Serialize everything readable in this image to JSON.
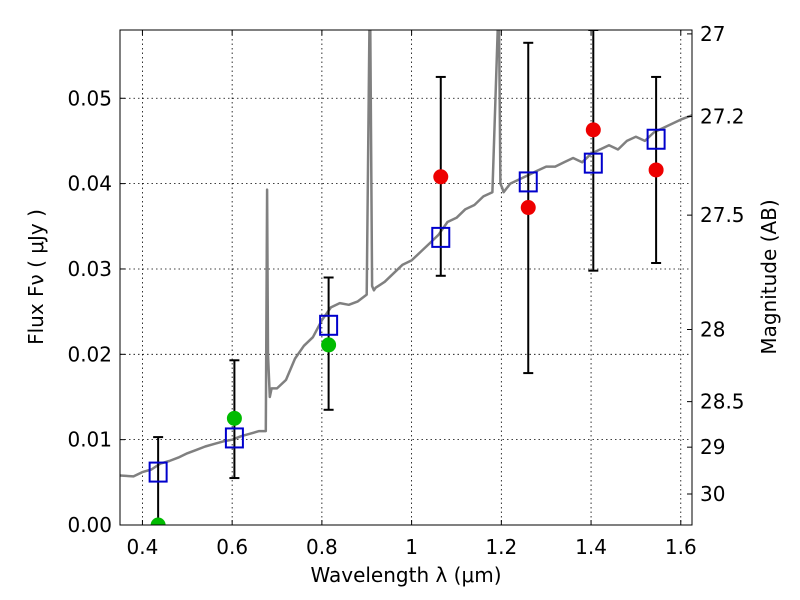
{
  "chart_data": {
    "type": "scatter",
    "xlabel": "Wavelength  λ (μm)",
    "ylabel": "Flux  Fν  ( μJy )",
    "ylabel_right": "Magnitude (AB)",
    "xlim": [
      0.35,
      1.625
    ],
    "ylim": [
      0.0,
      0.058
    ],
    "grid": true,
    "x_ticks": [
      0.4,
      0.6,
      0.8,
      1.0,
      1.2,
      1.4,
      1.6
    ],
    "x_tick_labels": [
      "0.4",
      "0.6",
      "0.8",
      "1",
      "1.2",
      "1.4",
      "1.6"
    ],
    "y_ticks": [
      0.0,
      0.01,
      0.02,
      0.03,
      0.04,
      0.05
    ],
    "y_tick_labels": [
      "0.00",
      "0.01",
      "0.02",
      "0.03",
      "0.04",
      "0.05"
    ],
    "right_ticks": [
      27,
      27.2,
      27.5,
      28,
      28.5,
      29,
      30
    ],
    "right_tick_labels": [
      "27",
      "27.2",
      "27.5",
      "28",
      "28.5",
      "29",
      "30"
    ],
    "colors": {
      "model": "#808080",
      "green": "#00bb00",
      "red": "#ee0000",
      "box": "#0000cc",
      "errorbar": "#000000"
    },
    "series": [
      {
        "name": "model spectrum",
        "kind": "line",
        "x": [
          0.35,
          0.38,
          0.4,
          0.42,
          0.44,
          0.46,
          0.48,
          0.5,
          0.52,
          0.54,
          0.56,
          0.58,
          0.6,
          0.62,
          0.64,
          0.66,
          0.675,
          0.678,
          0.68,
          0.684,
          0.688,
          0.7,
          0.72,
          0.74,
          0.76,
          0.78,
          0.8,
          0.82,
          0.84,
          0.86,
          0.88,
          0.9,
          0.906,
          0.908,
          0.912,
          0.916,
          0.92,
          0.94,
          0.96,
          0.98,
          1.0,
          1.02,
          1.04,
          1.06,
          1.08,
          1.1,
          1.12,
          1.14,
          1.16,
          1.18,
          1.192,
          1.195,
          1.198,
          1.202,
          1.205,
          1.22,
          1.24,
          1.26,
          1.28,
          1.3,
          1.32,
          1.34,
          1.36,
          1.38,
          1.4,
          1.42,
          1.44,
          1.46,
          1.48,
          1.5,
          1.52,
          1.54,
          1.56,
          1.58,
          1.6,
          1.625
        ],
        "y": [
          0.0058,
          0.0057,
          0.0062,
          0.0065,
          0.0072,
          0.0075,
          0.0079,
          0.0084,
          0.0088,
          0.0092,
          0.0095,
          0.0098,
          0.01,
          0.0104,
          0.0107,
          0.011,
          0.011,
          0.0393,
          0.02,
          0.015,
          0.016,
          0.016,
          0.017,
          0.0195,
          0.021,
          0.022,
          0.024,
          0.0255,
          0.026,
          0.0258,
          0.0262,
          0.027,
          0.058,
          0.058,
          0.028,
          0.0275,
          0.0278,
          0.0285,
          0.0295,
          0.0305,
          0.031,
          0.032,
          0.033,
          0.034,
          0.0355,
          0.036,
          0.037,
          0.0375,
          0.0385,
          0.039,
          0.058,
          0.058,
          0.04,
          0.0395,
          0.039,
          0.04,
          0.0405,
          0.041,
          0.0415,
          0.042,
          0.042,
          0.0425,
          0.043,
          0.0425,
          0.0435,
          0.044,
          0.0445,
          0.044,
          0.045,
          0.0455,
          0.045,
          0.046,
          0.0465,
          0.047,
          0.0475,
          0.048
        ]
      },
      {
        "name": "green observations",
        "kind": "points",
        "x": [
          0.435,
          0.605,
          0.815
        ],
        "y": [
          0.0,
          0.0125,
          0.0211
        ]
      },
      {
        "name": "red observations",
        "kind": "points",
        "x": [
          1.065,
          1.26,
          1.405,
          1.545
        ],
        "y": [
          0.0408,
          0.0372,
          0.0463,
          0.0416
        ]
      },
      {
        "name": "model photometry",
        "kind": "squares",
        "x": [
          0.435,
          0.605,
          0.815,
          1.065,
          1.26,
          1.405,
          1.545
        ],
        "y": [
          0.0062,
          0.0102,
          0.0234,
          0.0337,
          0.0402,
          0.0424,
          0.0452
        ]
      },
      {
        "name": "error bars",
        "kind": "errorbars",
        "x": [
          0.435,
          0.605,
          0.815,
          1.065,
          1.26,
          1.405,
          1.545
        ],
        "low": [
          0.0,
          0.0055,
          0.0135,
          0.0292,
          0.0178,
          0.0298,
          0.0307
        ],
        "high": [
          0.0103,
          0.0193,
          0.029,
          0.0525,
          0.0565,
          0.058,
          0.0525
        ]
      }
    ]
  }
}
